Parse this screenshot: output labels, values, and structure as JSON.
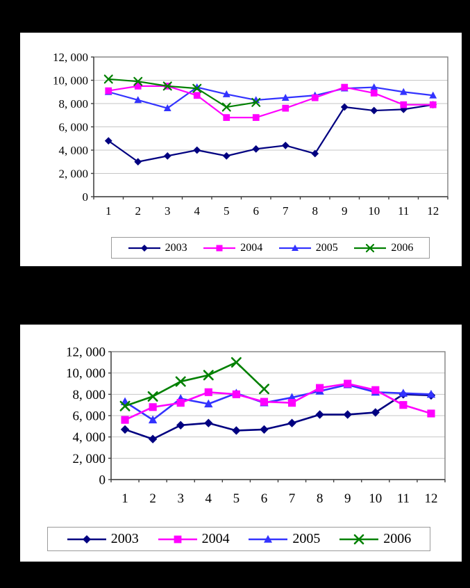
{
  "page": {
    "background_color": "#000000",
    "panel_background": "#ffffff"
  },
  "style": {
    "gridline_color": "#c6c6c6",
    "plot_border_color": "#808080",
    "axis_color": "#404040",
    "legend_border_color": "#9a9a9a",
    "text_color": "#000000"
  },
  "chart_data": [
    {
      "type": "line",
      "position": "top",
      "categories": [
        "1",
        "2",
        "3",
        "4",
        "5",
        "6",
        "7",
        "8",
        "9",
        "10",
        "11",
        "12"
      ],
      "y_axis_labels": [
        "0",
        "2, 000",
        "4, 000",
        "6, 000",
        "8, 000",
        "10, 000",
        "12, 000"
      ],
      "ylim": [
        0,
        12000
      ],
      "ytick_step": 2000,
      "grid": "on",
      "legend_position": "bottom",
      "title": "",
      "xlabel": "",
      "ylabel": "",
      "series": [
        {
          "name": "2003",
          "color": "#000080",
          "marker": "diamond",
          "values": [
            4800,
            3000,
            3500,
            4000,
            3500,
            4100,
            4400,
            3700,
            7700,
            7400,
            7500,
            7900
          ]
        },
        {
          "name": "2004",
          "color": "#FF00FF",
          "marker": "square",
          "values": [
            9100,
            9500,
            9500,
            8700,
            6800,
            6800,
            7600,
            8500,
            9400,
            8900,
            7900,
            7900
          ]
        },
        {
          "name": "2005",
          "color": "#3333FF",
          "marker": "triangle",
          "values": [
            9000,
            8300,
            7600,
            9400,
            8800,
            8300,
            8500,
            8700,
            9300,
            9400,
            9000,
            8700
          ]
        },
        {
          "name": "2006",
          "color": "#008000",
          "marker": "x",
          "values": [
            10100,
            9900,
            9500,
            9300,
            7700,
            8100,
            null,
            null,
            null,
            null,
            null,
            null
          ]
        }
      ]
    },
    {
      "type": "line",
      "position": "bottom",
      "categories": [
        "1",
        "2",
        "3",
        "4",
        "5",
        "6",
        "7",
        "8",
        "9",
        "10",
        "11",
        "12"
      ],
      "y_axis_labels": [
        "0",
        "2, 000",
        "4, 000",
        "6, 000",
        "8, 000",
        "10, 000",
        "12, 000"
      ],
      "ylim": [
        0,
        12000
      ],
      "ytick_step": 2000,
      "grid": "on",
      "legend_position": "bottom",
      "title": "",
      "xlabel": "",
      "ylabel": "",
      "series": [
        {
          "name": "2003",
          "color": "#000080",
          "marker": "diamond",
          "values": [
            4700,
            3800,
            5100,
            5300,
            4600,
            4700,
            5300,
            6100,
            6100,
            6300,
            8000,
            7900
          ]
        },
        {
          "name": "2004",
          "color": "#FF00FF",
          "marker": "square",
          "values": [
            5600,
            6800,
            7200,
            8200,
            8000,
            7300,
            7200,
            8600,
            9000,
            8400,
            7000,
            6200
          ]
        },
        {
          "name": "2005",
          "color": "#3333FF",
          "marker": "triangle",
          "values": [
            7300,
            5600,
            7600,
            7100,
            8100,
            7200,
            7700,
            8300,
            8900,
            8200,
            8100,
            8000
          ]
        },
        {
          "name": "2006",
          "color": "#008000",
          "marker": "x",
          "values": [
            6900,
            7800,
            9200,
            9800,
            11000,
            8500,
            null,
            null,
            null,
            null,
            null,
            null
          ]
        }
      ]
    }
  ]
}
